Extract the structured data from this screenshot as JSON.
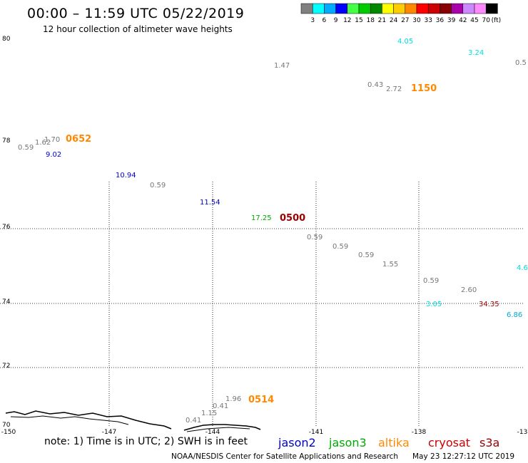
{
  "header": {
    "title": "00:00 – 11:59 UTC 05/22/2019",
    "subtitle": "12 hour collection of altimeter wave heights"
  },
  "colorbar": {
    "colors": [
      "#808080",
      "#00ffff",
      "#00aaff",
      "#0000ff",
      "#44ff44",
      "#00cc00",
      "#008800",
      "#ffff00",
      "#ffcc00",
      "#ff8800",
      "#ff0000",
      "#cc0000",
      "#880000",
      "#aa00aa",
      "#cc88ff",
      "#ff88ff",
      "#000000"
    ],
    "labels": [
      "3",
      "6",
      "9",
      "12",
      "15",
      "18",
      "21",
      "24",
      "27",
      "30",
      "33",
      "36",
      "39",
      "42",
      "45",
      "70"
    ],
    "unit": "(ft)"
  },
  "axes": {
    "x_ticks": [
      "-150",
      "-147",
      "-144",
      "-141",
      "-138",
      "-13"
    ],
    "y_ticks": [
      "80",
      "78",
      "76",
      "74",
      "72",
      "70"
    ]
  },
  "observations": [
    {
      "text": "4.05",
      "color": "#00dddd"
    },
    {
      "text": "3.24",
      "color": "#00dddd"
    },
    {
      "text": "0.5",
      "color": "#777777"
    },
    {
      "text": "1.47",
      "color": "#777777"
    },
    {
      "text": "0.43",
      "color": "#777777"
    },
    {
      "text": "2.72",
      "color": "#777777"
    },
    {
      "text": "0.59",
      "color": "#777777"
    },
    {
      "text": "1.62",
      "color": "#777777"
    },
    {
      "text": "1.70",
      "color": "#777777"
    },
    {
      "text": "9.02",
      "color": "#0000cc"
    },
    {
      "text": "10.94",
      "color": "#0000cc"
    },
    {
      "text": "0.59",
      "color": "#777777"
    },
    {
      "text": "11.54",
      "color": "#0000cc"
    },
    {
      "text": "17.25",
      "color": "#00aa00"
    },
    {
      "text": "0.59",
      "color": "#777777"
    },
    {
      "text": "0.59",
      "color": "#777777"
    },
    {
      "text": "0.59",
      "color": "#777777"
    },
    {
      "text": "1.55",
      "color": "#777777"
    },
    {
      "text": "0.59",
      "color": "#777777"
    },
    {
      "text": "2.60",
      "color": "#777777"
    },
    {
      "text": "4.6",
      "color": "#00dddd"
    },
    {
      "text": "3.05",
      "color": "#00dddd"
    },
    {
      "text": "34.35",
      "color": "#990000"
    },
    {
      "text": "6.86",
      "color": "#00aacc"
    },
    {
      "text": "1.96",
      "color": "#777777"
    },
    {
      "text": "0.41",
      "color": "#777777"
    },
    {
      "text": "1.15",
      "color": "#777777"
    },
    {
      "text": "0.41",
      "color": "#777777"
    }
  ],
  "time_labels": [
    {
      "text": "1150",
      "color": "#ff8800"
    },
    {
      "text": "0652",
      "color": "#ff8800"
    },
    {
      "text": "0500",
      "color": "#990000"
    },
    {
      "text": "0514",
      "color": "#ff8800"
    }
  ],
  "footer": {
    "note": "note:  1) Time is in UTC;  2) SWH is in feet",
    "credit": "NOAA/NESDIS Center for Satellite Applications and Research",
    "stamp": "May 23 12:27:12 UTC 2019"
  },
  "legend": [
    {
      "text": "jason2",
      "color": "#0000cc"
    },
    {
      "text": "jason3",
      "color": "#00aa00"
    },
    {
      "text": "altika",
      "color": "#ff8800"
    },
    {
      "text": "cryosat",
      "color": "#cc0000"
    },
    {
      "text": "s3a",
      "color": "#990000"
    }
  ]
}
